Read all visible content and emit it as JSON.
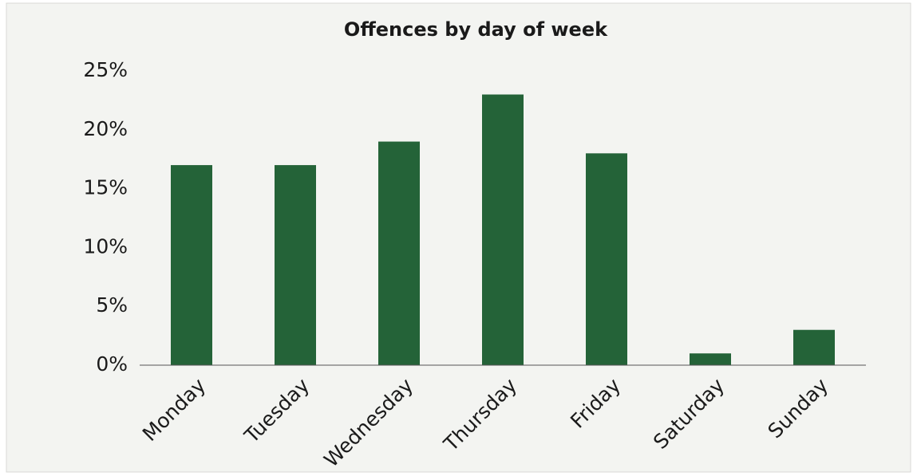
{
  "chart_data": {
    "type": "bar",
    "title": "Offences by day of week",
    "categories": [
      "Monday",
      "Tuesday",
      "Wednesday",
      "Thursday",
      "Friday",
      "Saturday",
      "Sunday"
    ],
    "values": [
      17,
      17,
      19,
      23,
      18,
      1,
      3
    ],
    "color": "#246338",
    "ylim": [
      0,
      25
    ],
    "yticks": [
      {
        "value": 0,
        "label": "0%"
      },
      {
        "value": 5,
        "label": "5%"
      },
      {
        "value": 10,
        "label": "10%"
      },
      {
        "value": 15,
        "label": "15%"
      },
      {
        "value": 20,
        "label": "20%"
      },
      {
        "value": 25,
        "label": "25%"
      }
    ],
    "grid": false
  }
}
